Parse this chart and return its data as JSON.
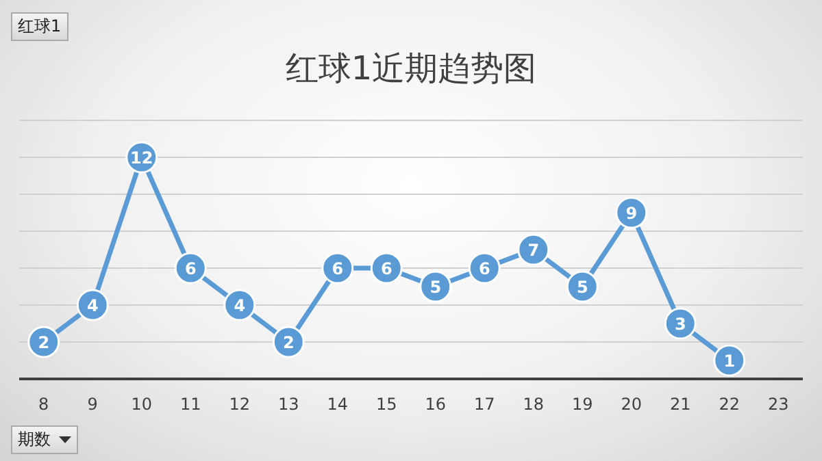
{
  "chart_data": {
    "type": "line",
    "title": "红球1近期趋势图",
    "categories": [
      "8",
      "9",
      "10",
      "11",
      "12",
      "13",
      "14",
      "15",
      "16",
      "17",
      "18",
      "19",
      "20",
      "21",
      "22",
      "23"
    ],
    "series": [
      {
        "color": "#5b9bd5",
        "values": [
          2,
          4,
          12,
          6,
          4,
          2,
          6,
          6,
          5,
          6,
          7,
          5,
          9,
          3,
          1,
          null
        ]
      }
    ],
    "ylim": [
      0,
      14
    ],
    "yticks": [
      {
        "value": 0,
        "label": null
      },
      {
        "value": 2,
        "label": null
      },
      {
        "value": 4,
        "label": null
      },
      {
        "value": 6,
        "label": null
      },
      {
        "value": 8,
        "label": null
      },
      {
        "value": 10,
        "label": null
      },
      {
        "value": 12,
        "label": null
      },
      {
        "value": 14,
        "label": null
      }
    ],
    "tick_labels": "x",
    "grid": "y",
    "legend": false,
    "data_labels": true,
    "marker": "circle",
    "line_style": "solid",
    "annotations": [
      "红球1",
      "期数"
    ]
  }
}
